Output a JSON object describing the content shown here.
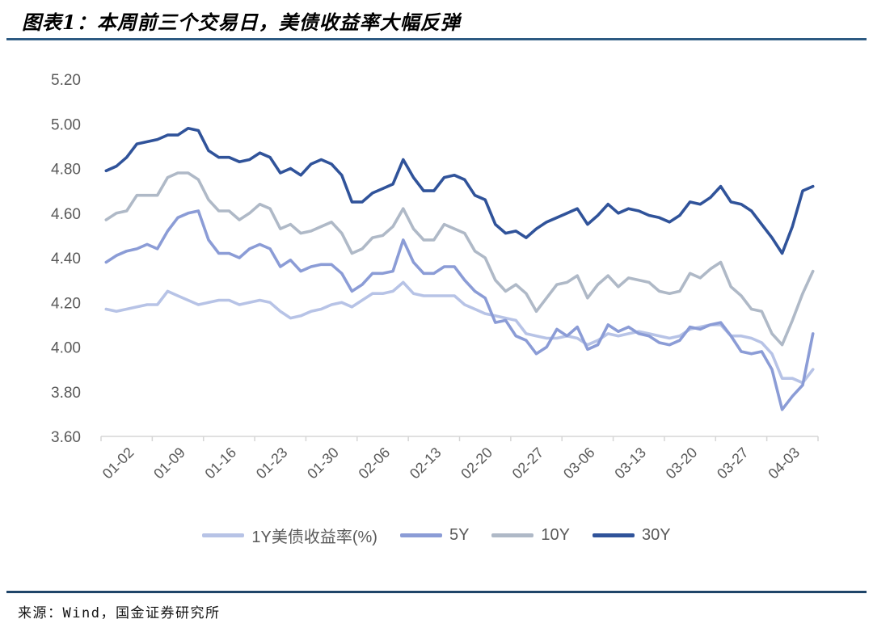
{
  "header": {
    "title": "图表1：本周前三个交易日，美债收益率大幅反弹"
  },
  "footer": {
    "source": "来源：Wind，国金证券研究所"
  },
  "colors": {
    "rule_top": "#2D5A82",
    "rule_bottom": "#1F4569",
    "axis": "#D6D6D6",
    "tick_text": "#595959",
    "legend_text": "#595959",
    "series_1y": "#B7C3E6",
    "series_5y": "#8B9CD6",
    "series_10y": "#AFB9C7",
    "series_30y": "#30539A"
  },
  "chart_data": {
    "type": "line",
    "title": "图表1：本周前三个交易日，美债收益率大幅反弹",
    "xlabel": "",
    "ylabel": "",
    "ylim": [
      3.6,
      5.2
    ],
    "y_ticks": [
      5.2,
      5.0,
      4.8,
      4.6,
      4.4,
      4.2,
      4.0,
      3.8,
      3.6
    ],
    "grid": false,
    "legend_position": "bottom",
    "x_label_interval": 5,
    "x_tick_labels": [
      "01-02",
      "01-09",
      "01-16",
      "01-23",
      "01-30",
      "02-06",
      "02-13",
      "02-20",
      "02-27",
      "03-06",
      "03-13",
      "03-20",
      "03-27",
      "04-03"
    ],
    "x": [
      "01-02",
      "01-03",
      "01-06",
      "01-07",
      "01-08",
      "01-09",
      "01-10",
      "01-13",
      "01-14",
      "01-15",
      "01-16",
      "01-17",
      "01-20",
      "01-21",
      "01-22",
      "01-23",
      "01-24",
      "01-27",
      "01-28",
      "01-29",
      "01-30",
      "01-31",
      "02-03",
      "02-04",
      "02-05",
      "02-06",
      "02-07",
      "02-10",
      "02-11",
      "02-12",
      "02-13",
      "02-14",
      "02-17",
      "02-18",
      "02-19",
      "02-20",
      "02-21",
      "02-24",
      "02-25",
      "02-26",
      "02-27",
      "02-28",
      "03-03",
      "03-04",
      "03-05",
      "03-06",
      "03-07",
      "03-10",
      "03-11",
      "03-12",
      "03-13",
      "03-14",
      "03-17",
      "03-18",
      "03-19",
      "03-20",
      "03-21",
      "03-24",
      "03-25",
      "03-26",
      "03-27",
      "03-28",
      "03-31",
      "04-01",
      "04-02",
      "04-03",
      "04-04",
      "04-07",
      "04-08",
      "04-09"
    ],
    "series": [
      {
        "name": "1Y美债收益率(%)",
        "color": "#B7C3E6",
        "values": [
          4.17,
          4.16,
          4.17,
          4.18,
          4.19,
          4.19,
          4.25,
          4.23,
          4.21,
          4.19,
          4.2,
          4.21,
          4.21,
          4.19,
          4.2,
          4.21,
          4.2,
          4.16,
          4.13,
          4.14,
          4.16,
          4.17,
          4.19,
          4.2,
          4.18,
          4.21,
          4.24,
          4.24,
          4.25,
          4.29,
          4.24,
          4.23,
          4.23,
          4.23,
          4.23,
          4.19,
          4.17,
          4.15,
          4.14,
          4.13,
          4.12,
          4.06,
          4.05,
          4.04,
          4.04,
          4.05,
          4.04,
          4.01,
          4.03,
          4.06,
          4.05,
          4.06,
          4.07,
          4.06,
          4.05,
          4.04,
          4.05,
          4.08,
          4.09,
          4.1,
          4.1,
          4.05,
          4.05,
          4.04,
          4.02,
          3.97,
          3.86,
          3.86,
          3.84,
          3.9
        ]
      },
      {
        "name": "5Y",
        "color": "#8B9CD6",
        "values": [
          4.38,
          4.41,
          4.43,
          4.44,
          4.46,
          4.44,
          4.52,
          4.58,
          4.6,
          4.61,
          4.48,
          4.42,
          4.42,
          4.4,
          4.44,
          4.46,
          4.44,
          4.36,
          4.39,
          4.34,
          4.36,
          4.37,
          4.37,
          4.33,
          4.25,
          4.28,
          4.33,
          4.33,
          4.34,
          4.48,
          4.38,
          4.33,
          4.33,
          4.36,
          4.36,
          4.3,
          4.25,
          4.22,
          4.11,
          4.12,
          4.05,
          4.03,
          3.97,
          4.0,
          4.08,
          4.05,
          4.09,
          3.99,
          4.01,
          4.1,
          4.07,
          4.09,
          4.06,
          4.05,
          4.02,
          4.01,
          4.03,
          4.09,
          4.08,
          4.1,
          4.11,
          4.05,
          3.98,
          3.97,
          3.98,
          3.9,
          3.72,
          3.78,
          3.83,
          4.06
        ]
      },
      {
        "name": "10Y",
        "color": "#AFB9C7",
        "values": [
          4.57,
          4.6,
          4.61,
          4.68,
          4.68,
          4.68,
          4.76,
          4.78,
          4.78,
          4.75,
          4.66,
          4.61,
          4.61,
          4.57,
          4.6,
          4.64,
          4.62,
          4.53,
          4.55,
          4.51,
          4.52,
          4.54,
          4.56,
          4.51,
          4.42,
          4.44,
          4.49,
          4.5,
          4.54,
          4.62,
          4.53,
          4.48,
          4.48,
          4.55,
          4.53,
          4.51,
          4.43,
          4.4,
          4.3,
          4.25,
          4.28,
          4.24,
          4.16,
          4.22,
          4.28,
          4.29,
          4.32,
          4.22,
          4.28,
          4.32,
          4.27,
          4.31,
          4.3,
          4.29,
          4.25,
          4.24,
          4.25,
          4.33,
          4.31,
          4.35,
          4.38,
          4.27,
          4.23,
          4.17,
          4.16,
          4.06,
          4.01,
          4.12,
          4.24,
          4.34
        ]
      },
      {
        "name": "30Y",
        "color": "#30539A",
        "values": [
          4.79,
          4.81,
          4.85,
          4.91,
          4.92,
          4.93,
          4.95,
          4.95,
          4.98,
          4.97,
          4.88,
          4.85,
          4.85,
          4.83,
          4.84,
          4.87,
          4.85,
          4.78,
          4.8,
          4.77,
          4.82,
          4.84,
          4.82,
          4.77,
          4.65,
          4.65,
          4.69,
          4.71,
          4.73,
          4.84,
          4.76,
          4.7,
          4.7,
          4.76,
          4.77,
          4.75,
          4.68,
          4.66,
          4.55,
          4.51,
          4.52,
          4.49,
          4.53,
          4.56,
          4.58,
          4.6,
          4.62,
          4.55,
          4.59,
          4.64,
          4.6,
          4.62,
          4.61,
          4.59,
          4.58,
          4.56,
          4.59,
          4.65,
          4.64,
          4.67,
          4.72,
          4.65,
          4.64,
          4.61,
          4.55,
          4.49,
          4.42,
          4.54,
          4.7,
          4.72
        ]
      }
    ]
  }
}
